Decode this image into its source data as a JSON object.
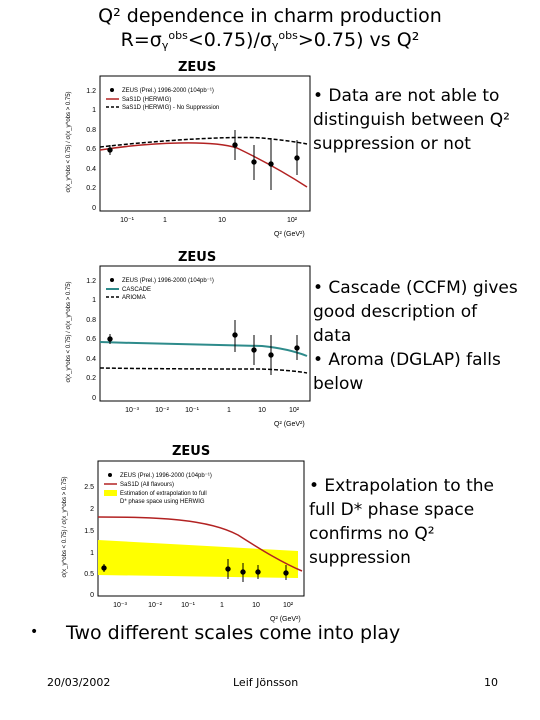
{
  "slide": {
    "title_line1": "Q² dependence in charm production",
    "title_line2_prefix": "R=σ",
    "title_line2_mid": "<0.75)/σ",
    "title_line2_suffix": ">0.75) vs Q²",
    "gamma": "γ",
    "obs": "obs"
  },
  "panels": [
    {
      "zeus": "ZEUS",
      "legend": [
        "ZEUS (Prel.) 1996-2000 (104pb⁻¹)",
        "SaS1D (HERWIG)",
        "SaS1D (HERWIG) - No Suppression"
      ],
      "yticks": [
        "1.2",
        "1",
        "0.8",
        "0.6",
        "0.4",
        "0.2",
        "0"
      ],
      "xticks": [
        "10⁻¹",
        "1",
        "10",
        "10²"
      ],
      "ylabel": "σ(x_γ^obs < 0.75) / σ(x_γ^obs > 0.75)",
      "xlabel": "Q² (GeV²)",
      "note": [
        "• Data are not able to",
        "distinguish between Q²",
        "suppression or not"
      ]
    },
    {
      "zeus": "ZEUS",
      "legend": [
        "ZEUS (Prel.) 1996-2000 (104pb⁻¹)",
        "CASCADE",
        "ARIOMA"
      ],
      "yticks": [
        "1.2",
        "1",
        "0.8",
        "0.6",
        "0.4",
        "0.2",
        "0"
      ],
      "xticks": [
        "10⁻³",
        "10⁻²",
        "10⁻¹",
        "1",
        "10",
        "10²"
      ],
      "ylabel": "σ(x_γ^obs < 0.75) / σ(x_γ^obs > 0.75)",
      "xlabel": "Q² (GeV²)",
      "note": [
        "• Cascade (CCFM) gives",
        "good description of",
        "data",
        "• Aroma (DGLAP) falls",
        "below"
      ]
    },
    {
      "zeus": "ZEUS",
      "legend": [
        "ZEUS (Prel.) 1996-2000 (104pb⁻¹)",
        "SaS1D (All flavours)",
        "Estimation of extrapolation to full",
        "D* phase space using HERWIG"
      ],
      "yticks": [
        "2.5",
        "2",
        "1.5",
        "1",
        "0.5",
        "0"
      ],
      "xticks": [
        "10⁻³",
        "10⁻²",
        "10⁻¹",
        "1",
        "10",
        "10²"
      ],
      "ylabel": "σ(x_γ^obs < 0.75) / σ(x_γ^obs > 0.75)",
      "xlabel": "Q² (GeV²)",
      "note": [
        "• Extrapolation to the",
        "full D* phase space",
        "confirms no Q²",
        "suppression"
      ]
    }
  ],
  "main_bullet": "•",
  "main_text": "Two different scales come into play",
  "footer": {
    "date": "20/03/2002",
    "author": "Leif Jönsson",
    "page": "10"
  },
  "colors": {
    "red": "#b22222",
    "gray": "#2e8b8b",
    "yellow": "#ffff00"
  }
}
